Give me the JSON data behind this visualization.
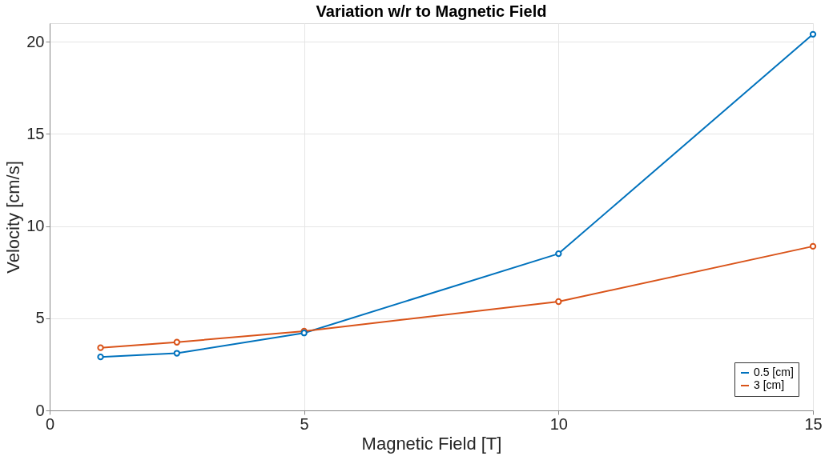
{
  "chart_data": {
    "type": "line",
    "title": "Variation w/r to Magnetic Field",
    "xlabel": "Magnetic Field [T]",
    "ylabel": "Velocity [cm/s]",
    "x": [
      1,
      2.5,
      5,
      10,
      15
    ],
    "series": [
      {
        "name": "0.5 [cm]",
        "color": "#0072bd",
        "values": [
          2.9,
          3.1,
          4.2,
          8.5,
          20.4
        ]
      },
      {
        "name": "3 [cm]",
        "color": "#d95319",
        "values": [
          3.4,
          3.7,
          4.3,
          5.9,
          8.9
        ]
      }
    ],
    "xlim": [
      0,
      15
    ],
    "xticks": [
      0,
      5,
      10,
      15
    ],
    "ylim": [
      0,
      21
    ],
    "yticks": [
      0,
      5,
      10,
      15,
      20
    ],
    "grid": true,
    "legend": "bottom right",
    "marker": "circle",
    "line_style": "solid"
  }
}
